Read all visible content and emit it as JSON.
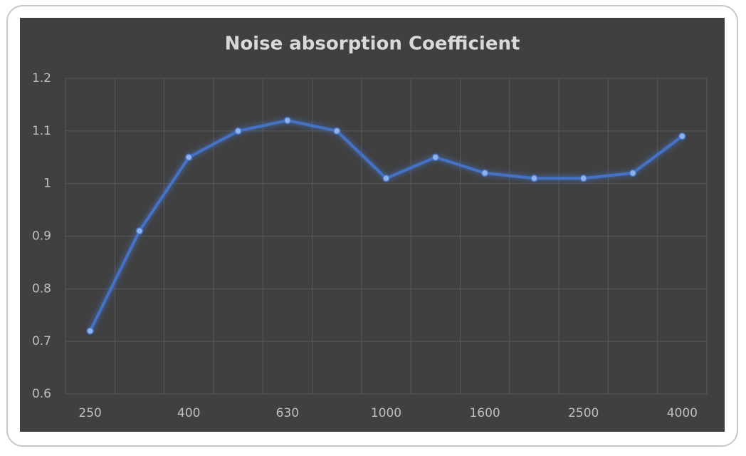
{
  "chart_data": {
    "type": "line",
    "title": "Noise absorption Coefficient",
    "categories": [
      "250",
      null,
      "400",
      null,
      "630",
      null,
      "1000",
      null,
      "1600",
      null,
      "2500",
      null,
      "4000"
    ],
    "series": [
      {
        "name": "Noise absorption Coefficient",
        "color": "#4472c4",
        "values": [
          0.72,
          0.91,
          1.05,
          1.1,
          1.12,
          1.1,
          1.01,
          1.05,
          1.02,
          1.01,
          1.01,
          1.02,
          1.09
        ]
      }
    ],
    "ylim": [
      0.6,
      1.2
    ],
    "yticks": [
      0.6,
      0.7,
      0.8,
      0.9,
      1,
      1.1,
      1.2
    ],
    "grid": true
  }
}
